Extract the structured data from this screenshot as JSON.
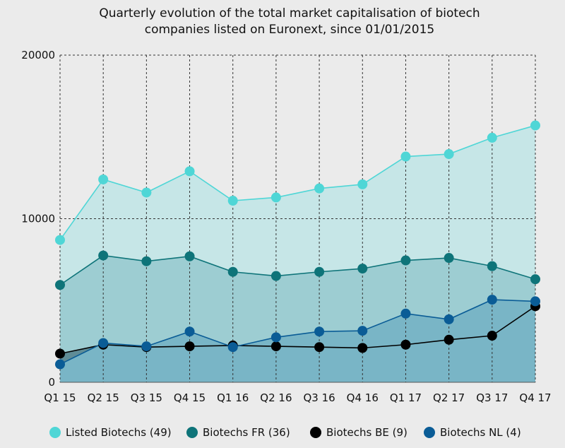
{
  "chart_data": {
    "type": "area",
    "title": [
      "Quarterly evolution of the total market capitalisation of biotech",
      "companies listed on Euronext, since 01/01/2015"
    ],
    "categories": [
      "Q1 15",
      "Q2 15",
      "Q3 15",
      "Q4 15",
      "Q1 16",
      "Q2 16",
      "Q3 16",
      "Q4 16",
      "Q1 17",
      "Q2 17",
      "Q3 17",
      "Q4 17"
    ],
    "y_ticks": [
      "0",
      "10000",
      "20000"
    ],
    "ylim": [
      0,
      20000
    ],
    "grid": "dashed",
    "legend_position": "bottom",
    "series": [
      {
        "name": "Listed Biotechs (49)",
        "color": "#4fd6d6",
        "fill": "#c6e6e7",
        "values": [
          8700,
          12400,
          11600,
          12900,
          11100,
          11300,
          11850,
          12100,
          13800,
          13950,
          14950,
          15700
        ]
      },
      {
        "name": "Biotechs FR (36)",
        "color": "#0e7479",
        "fill": "#9dcdd2",
        "values": [
          5950,
          7750,
          7400,
          7700,
          6750,
          6500,
          6750,
          6950,
          7450,
          7600,
          7100,
          6300
        ]
      },
      {
        "name": "Biotechs BE (9)",
        "color": "#000000",
        "fill": "#5f8c96",
        "values": [
          1750,
          2300,
          2150,
          2200,
          2250,
          2200,
          2150,
          2100,
          2300,
          2600,
          2850,
          4650
        ]
      },
      {
        "name": "Biotechs NL (4)",
        "color": "#0a5c96",
        "fill": "#79b5c6",
        "values": [
          1100,
          2400,
          2200,
          3100,
          2150,
          2750,
          3100,
          3150,
          4200,
          3850,
          5050,
          4950
        ]
      }
    ]
  }
}
